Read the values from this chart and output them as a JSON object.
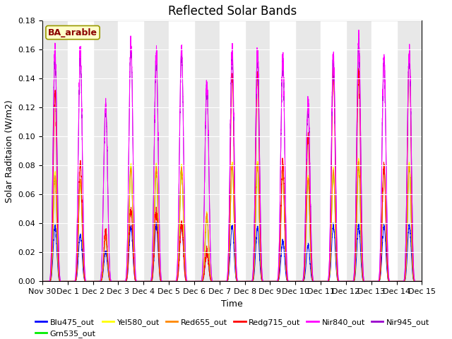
{
  "title": "Reflected Solar Bands",
  "xlabel": "Time",
  "ylabel": "Solar Raditaion (W/m2)",
  "annotation": "BA_arable",
  "ylim": [
    0,
    0.18
  ],
  "yticks": [
    0.0,
    0.02,
    0.04,
    0.06,
    0.08,
    0.1,
    0.12,
    0.14,
    0.16,
    0.18
  ],
  "xtick_labels": [
    "Nov 30",
    "Dec 1",
    "Dec 2",
    "Dec 3",
    "Dec 4",
    "Dec 5",
    "Dec 6",
    "Dec 7",
    "Dec 8",
    "Dec 9",
    "Dec 10",
    "Dec 11",
    "Dec 12",
    "Dec 13",
    "Dec 14",
    "Dec 15"
  ],
  "bands": [
    {
      "name": "Blu475_out",
      "color": "#0000ff"
    },
    {
      "name": "Grn535_out",
      "color": "#00ee00"
    },
    {
      "name": "Yel580_out",
      "color": "#ffff00"
    },
    {
      "name": "Red655_out",
      "color": "#ff8800"
    },
    {
      "name": "Redg715_out",
      "color": "#ff0000"
    },
    {
      "name": "Nir840_out",
      "color": "#ff00ff"
    },
    {
      "name": "Nir945_out",
      "color": "#9900cc"
    }
  ],
  "n_days": 15,
  "pts_per_day": 288,
  "background_color": "#e8e8e8",
  "title_fontsize": 12,
  "label_fontsize": 9,
  "tick_fontsize": 8,
  "day_peaks_nir840": [
    0.16,
    0.158,
    0.122,
    0.165,
    0.158,
    0.162,
    0.136,
    0.16,
    0.158,
    0.155,
    0.124,
    0.155,
    0.168,
    0.155,
    0.16
  ],
  "day_peaks_nir945": [
    0.155,
    0.152,
    0.119,
    0.161,
    0.154,
    0.157,
    0.133,
    0.156,
    0.154,
    0.151,
    0.121,
    0.151,
    0.164,
    0.151,
    0.156
  ],
  "day_peaks_redg": [
    0.13,
    0.082,
    0.034,
    0.05,
    0.048,
    0.04,
    0.02,
    0.143,
    0.143,
    0.083,
    0.1,
    0.144,
    0.145,
    0.079,
    0.157
  ],
  "day_peaks_red": [
    0.072,
    0.07,
    0.03,
    0.078,
    0.078,
    0.078,
    0.045,
    0.08,
    0.08,
    0.075,
    0.07,
    0.075,
    0.082,
    0.078,
    0.08
  ],
  "day_peaks_yel": [
    0.075,
    0.069,
    0.031,
    0.081,
    0.08,
    0.08,
    0.046,
    0.082,
    0.082,
    0.076,
    0.072,
    0.077,
    0.084,
    0.08,
    0.082
  ],
  "day_peaks_grn": [
    0.074,
    0.068,
    0.03,
    0.08,
    0.079,
    0.079,
    0.045,
    0.081,
    0.081,
    0.075,
    0.071,
    0.076,
    0.082,
    0.079,
    0.08
  ],
  "day_peaks_blu": [
    0.038,
    0.032,
    0.02,
    0.038,
    0.039,
    0.039,
    0.02,
    0.038,
    0.037,
    0.028,
    0.025,
    0.038,
    0.039,
    0.038,
    0.039
  ]
}
